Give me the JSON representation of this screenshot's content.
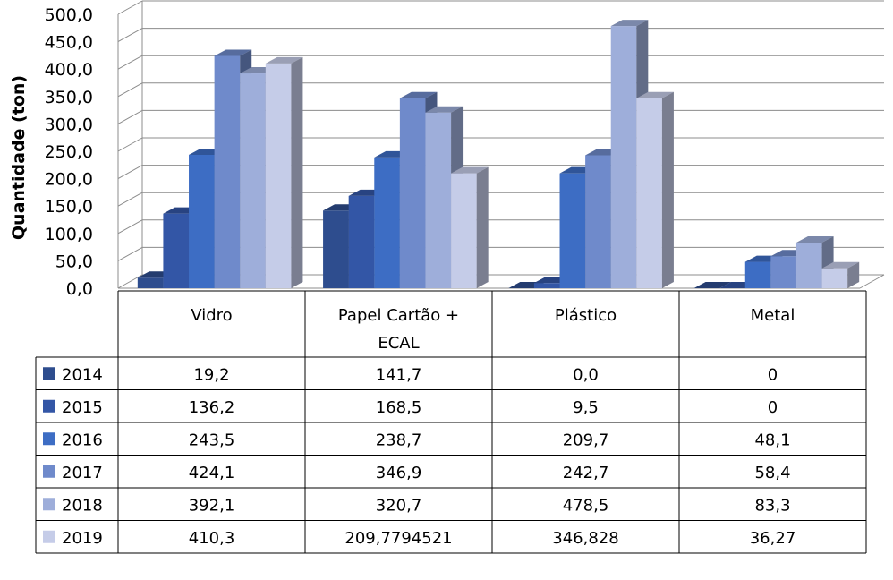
{
  "chart_data": {
    "type": "bar",
    "ylabel": "Quantidade (ton)",
    "ylim": [
      0,
      500
    ],
    "yticks": [
      "0,0",
      "50,0",
      "100,0",
      "150,0",
      "200,0",
      "250,0",
      "300,0",
      "350,0",
      "400,0",
      "450,0",
      "500,0"
    ],
    "grid": true,
    "categories": [
      "Vidro",
      "Papel Cartão + ECAL",
      "Plástico",
      "Metal"
    ],
    "category_lines": [
      [
        "Vidro"
      ],
      [
        "Papel Cartão +",
        "ECAL"
      ],
      [
        "Plástico"
      ],
      [
        "Metal"
      ]
    ],
    "legend": "data-table",
    "series": [
      {
        "name": "2014",
        "color": "#2E4D8E",
        "values": [
          19.2,
          141.7,
          0.0,
          0
        ],
        "labels": [
          "19,2",
          "141,7",
          "0,0",
          "0"
        ]
      },
      {
        "name": "2015",
        "color": "#3356A6",
        "values": [
          136.2,
          168.5,
          9.5,
          0
        ],
        "labels": [
          "136,2",
          "168,5",
          "9,5",
          "0"
        ]
      },
      {
        "name": "2016",
        "color": "#3D6DC4",
        "values": [
          243.5,
          238.7,
          209.7,
          48.1
        ],
        "labels": [
          "243,5",
          "238,7",
          "209,7",
          "48,1"
        ]
      },
      {
        "name": "2017",
        "color": "#6F8ACB",
        "values": [
          424.1,
          346.9,
          242.7,
          58.4
        ],
        "labels": [
          "424,1",
          "346,9",
          "242,7",
          "58,4"
        ]
      },
      {
        "name": "2018",
        "color": "#9EAEDA",
        "values": [
          392.1,
          320.7,
          478.5,
          83.3
        ],
        "labels": [
          "392,1",
          "320,7",
          "478,5",
          "83,3"
        ]
      },
      {
        "name": "2019",
        "color": "#C5CCE8",
        "values": [
          410.3,
          209.7794521,
          346.828,
          36.27
        ],
        "labels": [
          "410,3",
          "209,7794521",
          "346,828",
          "36,27"
        ]
      }
    ]
  }
}
